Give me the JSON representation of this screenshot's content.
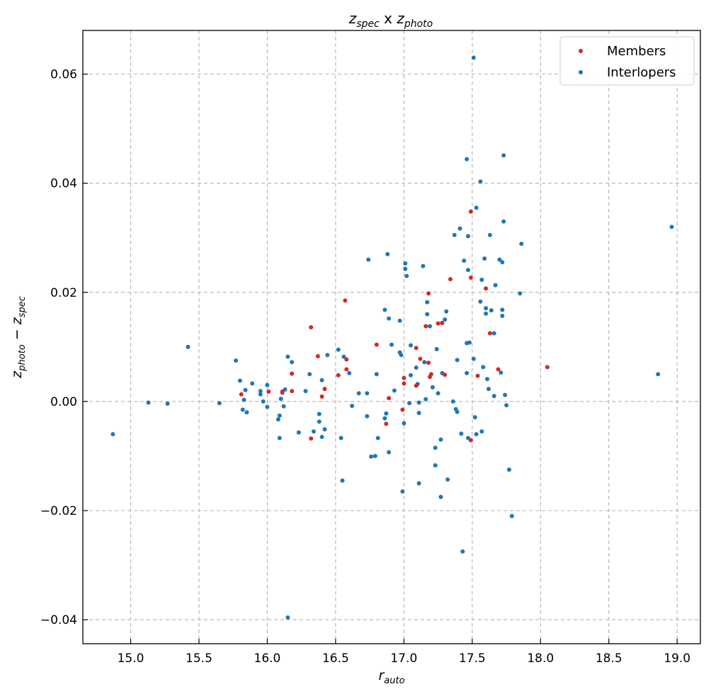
{
  "chart_data": {
    "type": "scatter",
    "title": "z_spec x z_photo",
    "title_parts": {
      "a": "z",
      "a_sub": "spec",
      "mid": " x ",
      "b": "z",
      "b_sub": "photo"
    },
    "xlabel": "r_auto",
    "xlabel_parts": {
      "main": "r",
      "sub": "auto"
    },
    "ylabel": "z_photo − z_spec",
    "ylabel_parts": {
      "a": "z",
      "a_sub": "photo",
      "op": " − ",
      "b": "z",
      "b_sub": "spec"
    },
    "xlim": [
      14.65,
      19.17
    ],
    "ylim": [
      -0.0444,
      0.068
    ],
    "xticks": [
      15.0,
      15.5,
      16.0,
      16.5,
      17.0,
      17.5,
      18.0,
      18.5,
      19.0
    ],
    "xtick_labels": [
      "15.0",
      "15.5",
      "16.0",
      "16.5",
      "17.0",
      "17.5",
      "18.0",
      "18.5",
      "19.0"
    ],
    "yticks": [
      -0.04,
      -0.02,
      0.0,
      0.02,
      0.04,
      0.06
    ],
    "ytick_labels": [
      "−0.04",
      "−0.02",
      "0.00",
      "0.02",
      "0.04",
      "0.06"
    ],
    "grid": true,
    "legend_position": "top-right",
    "series": [
      {
        "name": "Members",
        "color": "#d62728",
        "points": [
          [
            15.81,
            0.0013
          ],
          [
            16.01,
            0.0018
          ],
          [
            16.11,
            0.0018
          ],
          [
            16.18,
            0.0051
          ],
          [
            16.18,
            0.0019
          ],
          [
            16.32,
            0.0136
          ],
          [
            16.32,
            -0.0068
          ],
          [
            16.37,
            0.0083
          ],
          [
            16.4,
            0.0009
          ],
          [
            16.42,
            0.0023
          ],
          [
            16.52,
            0.0048
          ],
          [
            16.57,
            0.0185
          ],
          [
            16.58,
            0.0077
          ],
          [
            16.58,
            0.0059
          ],
          [
            16.8,
            0.0104
          ],
          [
            16.87,
            -0.0041
          ],
          [
            16.89,
            0.0006
          ],
          [
            16.99,
            -0.0015
          ],
          [
            17.0,
            0.0043
          ],
          [
            17.0,
            0.0033
          ],
          [
            17.09,
            0.0029
          ],
          [
            17.09,
            0.0098
          ],
          [
            17.12,
            0.0078
          ],
          [
            17.16,
            0.0138
          ],
          [
            17.18,
            0.0198
          ],
          [
            17.18,
            0.0071
          ],
          [
            17.19,
            0.0045
          ],
          [
            17.2,
            0.005
          ],
          [
            17.25,
            0.0143
          ],
          [
            17.28,
            0.0144
          ],
          [
            17.3,
            0.0049
          ],
          [
            17.34,
            0.0224
          ],
          [
            17.49,
            0.0348
          ],
          [
            17.49,
            0.0227
          ],
          [
            17.49,
            -0.0071
          ],
          [
            17.54,
            0.0047
          ],
          [
            17.6,
            0.0207
          ],
          [
            17.63,
            0.0125
          ],
          [
            17.69,
            0.0059
          ],
          [
            18.05,
            0.0063
          ]
        ]
      },
      {
        "name": "Interlopers",
        "color": "#1f77b4",
        "points": [
          [
            14.87,
            -0.006
          ],
          [
            15.13,
            -0.0002
          ],
          [
            15.27,
            -0.0004
          ],
          [
            15.42,
            0.01
          ],
          [
            15.65,
            -0.0003
          ],
          [
            15.77,
            0.0075
          ],
          [
            15.8,
            0.0038
          ],
          [
            15.82,
            -0.0015
          ],
          [
            15.83,
            0.0003
          ],
          [
            15.84,
            0.0021
          ],
          [
            15.85,
            -0.002
          ],
          [
            15.89,
            0.0033
          ],
          [
            15.95,
            0.0019
          ],
          [
            15.95,
            0.0013
          ],
          [
            15.97,
            0.0
          ],
          [
            16.0,
            -0.001
          ],
          [
            16.0,
            0.003
          ],
          [
            16.08,
            -0.0033
          ],
          [
            16.09,
            -0.0026
          ],
          [
            16.09,
            -0.0067
          ],
          [
            16.1,
            0.0005
          ],
          [
            16.11,
            0.0016
          ],
          [
            16.12,
            -0.0009
          ],
          [
            16.13,
            0.0022
          ],
          [
            16.15,
            0.0082
          ],
          [
            16.15,
            -0.0396
          ],
          [
            16.18,
            0.0072
          ],
          [
            16.23,
            -0.0057
          ],
          [
            16.28,
            0.0019
          ],
          [
            16.31,
            0.005
          ],
          [
            16.34,
            -0.0055
          ],
          [
            16.38,
            -0.0023
          ],
          [
            16.38,
            -0.0037
          ],
          [
            16.4,
            -0.0065
          ],
          [
            16.4,
            0.0039
          ],
          [
            16.42,
            -0.0051
          ],
          [
            16.44,
            0.0085
          ],
          [
            16.52,
            0.0095
          ],
          [
            16.54,
            -0.0067
          ],
          [
            16.55,
            -0.0145
          ],
          [
            16.56,
            0.0082
          ],
          [
            16.6,
            0.0052
          ],
          [
            16.62,
            -0.0008
          ],
          [
            16.67,
            0.0015
          ],
          [
            16.73,
            -0.0027
          ],
          [
            16.73,
            0.0015
          ],
          [
            16.74,
            0.026
          ],
          [
            16.76,
            -0.0101
          ],
          [
            16.79,
            -0.01
          ],
          [
            16.8,
            0.005
          ],
          [
            16.81,
            -0.0067
          ],
          [
            16.86,
            0.0168
          ],
          [
            16.86,
            -0.0031
          ],
          [
            16.87,
            -0.0022
          ],
          [
            16.88,
            0.027
          ],
          [
            16.89,
            0.0152
          ],
          [
            16.89,
            -0.0093
          ],
          [
            16.91,
            0.0104
          ],
          [
            16.93,
            0.002
          ],
          [
            16.97,
            0.0148
          ],
          [
            16.97,
            0.009
          ],
          [
            16.98,
            0.0085
          ],
          [
            16.99,
            -0.0165
          ],
          [
            17.0,
            -0.004
          ],
          [
            17.01,
            0.0253
          ],
          [
            17.01,
            0.0243
          ],
          [
            17.02,
            0.023
          ],
          [
            17.04,
            -0.0003
          ],
          [
            17.05,
            0.0048
          ],
          [
            17.05,
            0.0103
          ],
          [
            17.09,
            0.0062
          ],
          [
            17.1,
            0.0032
          ],
          [
            17.11,
            -0.0021
          ],
          [
            17.11,
            -0.0002
          ],
          [
            17.11,
            -0.015
          ],
          [
            17.14,
            0.0248
          ],
          [
            17.15,
            0.0072
          ],
          [
            17.16,
            0.0004
          ],
          [
            17.17,
            0.0182
          ],
          [
            17.17,
            0.016
          ],
          [
            17.19,
            0.0138
          ],
          [
            17.21,
            0.0026
          ],
          [
            17.23,
            -0.0085
          ],
          [
            17.23,
            -0.0117
          ],
          [
            17.24,
            0.0096
          ],
          [
            17.25,
            0.0015
          ],
          [
            17.27,
            -0.007
          ],
          [
            17.27,
            -0.0175
          ],
          [
            17.28,
            0.0052
          ],
          [
            17.3,
            0.015
          ],
          [
            17.31,
            0.0165
          ],
          [
            17.32,
            -0.0143
          ],
          [
            17.36,
            0.0
          ],
          [
            17.37,
            0.0305
          ],
          [
            17.38,
            -0.0014
          ],
          [
            17.39,
            -0.0019
          ],
          [
            17.39,
            0.0076
          ],
          [
            17.41,
            0.0317
          ],
          [
            17.42,
            -0.0059
          ],
          [
            17.43,
            -0.0275
          ],
          [
            17.44,
            0.0258
          ],
          [
            17.46,
            0.0444
          ],
          [
            17.46,
            0.0107
          ],
          [
            17.46,
            0.0052
          ],
          [
            17.47,
            0.0241
          ],
          [
            17.47,
            0.0303
          ],
          [
            17.47,
            -0.0067
          ],
          [
            17.48,
            0.0108
          ],
          [
            17.51,
            0.063
          ],
          [
            17.51,
            0.0078
          ],
          [
            17.52,
            -0.0029
          ],
          [
            17.53,
            0.0355
          ],
          [
            17.53,
            -0.006
          ],
          [
            17.56,
            0.0403
          ],
          [
            17.56,
            0.0183
          ],
          [
            17.57,
            0.0223
          ],
          [
            17.57,
            -0.0055
          ],
          [
            17.58,
            0.0063
          ],
          [
            17.59,
            0.0262
          ],
          [
            17.6,
            0.0171
          ],
          [
            17.6,
            0.0161
          ],
          [
            17.61,
            0.0041
          ],
          [
            17.62,
            0.0023
          ],
          [
            17.63,
            0.0305
          ],
          [
            17.64,
            0.0167
          ],
          [
            17.66,
            0.001
          ],
          [
            17.66,
            0.0125
          ],
          [
            17.67,
            0.0213
          ],
          [
            17.7,
            0.026
          ],
          [
            17.71,
            0.0053
          ],
          [
            17.72,
            0.0168
          ],
          [
            17.72,
            0.0157
          ],
          [
            17.72,
            0.0255
          ],
          [
            17.73,
            0.033
          ],
          [
            17.73,
            0.0451
          ],
          [
            17.74,
            0.0012
          ],
          [
            17.75,
            -0.0007
          ],
          [
            17.77,
            -0.0125
          ],
          [
            17.79,
            -0.021
          ],
          [
            17.85,
            0.0198
          ],
          [
            17.86,
            0.0289
          ],
          [
            18.86,
            0.005
          ],
          [
            18.96,
            0.032
          ]
        ]
      }
    ]
  }
}
